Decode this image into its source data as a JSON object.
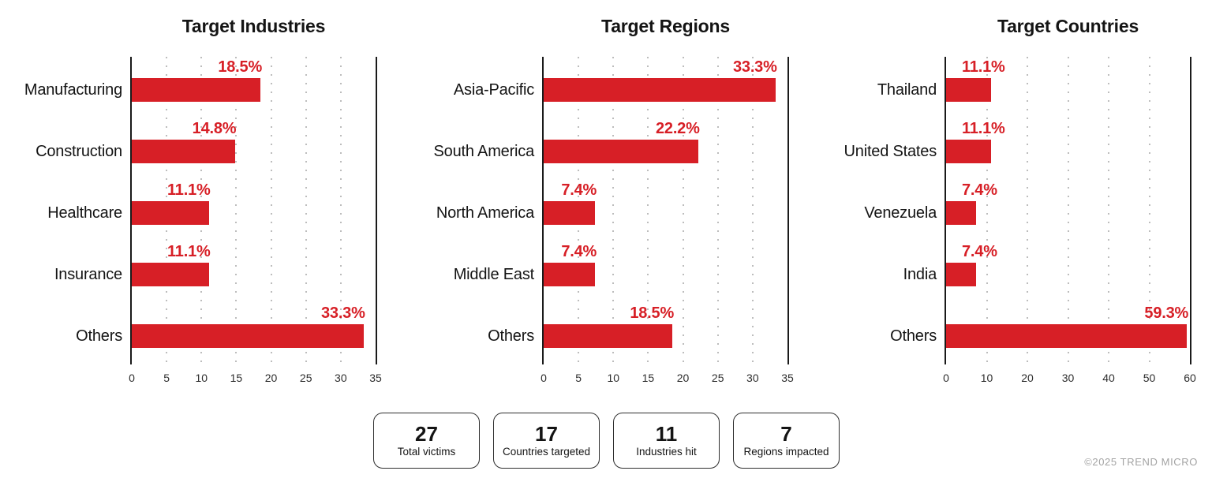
{
  "accent_color": "#d71f26",
  "chart_data": [
    {
      "type": "bar",
      "orientation": "horizontal",
      "title": "Target Industries",
      "categories": [
        "Manufacturing",
        "Construction",
        "Healthcare",
        "Insurance",
        "Others"
      ],
      "values": [
        18.5,
        14.8,
        11.1,
        11.1,
        33.3
      ],
      "value_labels": [
        "18.5%",
        "14.8%",
        "11.1%",
        "11.1%",
        "33.3%"
      ],
      "xlabel": "",
      "ylabel": "",
      "xlim": [
        0,
        35
      ],
      "xticks": [
        0,
        5,
        10,
        15,
        20,
        25,
        30,
        35
      ],
      "grid": "dotted-vertical",
      "bar_color": "#d71f26"
    },
    {
      "type": "bar",
      "orientation": "horizontal",
      "title": "Target Regions",
      "categories": [
        "Asia-Pacific",
        "South America",
        "North America",
        "Middle East",
        "Others"
      ],
      "values": [
        33.3,
        22.2,
        7.4,
        7.4,
        18.5
      ],
      "value_labels": [
        "33.3%",
        "22.2%",
        "7.4%",
        "7.4%",
        "18.5%"
      ],
      "xlabel": "",
      "ylabel": "",
      "xlim": [
        0,
        35
      ],
      "xticks": [
        0,
        5,
        10,
        15,
        20,
        25,
        30,
        35
      ],
      "grid": "dotted-vertical",
      "bar_color": "#d71f26"
    },
    {
      "type": "bar",
      "orientation": "horizontal",
      "title": "Target Countries",
      "categories": [
        "Thailand",
        "United States",
        "Venezuela",
        "India",
        "Others"
      ],
      "values": [
        11.1,
        11.1,
        7.4,
        7.4,
        59.3
      ],
      "value_labels": [
        "11.1%",
        "11.1%",
        "7.4%",
        "7.4%",
        "59.3%"
      ],
      "xlabel": "",
      "ylabel": "",
      "xlim": [
        0,
        60
      ],
      "xticks": [
        0,
        10,
        20,
        30,
        40,
        50,
        60
      ],
      "grid": "dotted-vertical",
      "bar_color": "#d71f26"
    }
  ],
  "stats": [
    {
      "value": "27",
      "label": "Total victims"
    },
    {
      "value": "17",
      "label": "Countries targeted"
    },
    {
      "value": "11",
      "label": "Industries hit"
    },
    {
      "value": "7",
      "label": "Regions impacted"
    }
  ],
  "footer": {
    "copyright": "©2025 TREND MICRO"
  }
}
